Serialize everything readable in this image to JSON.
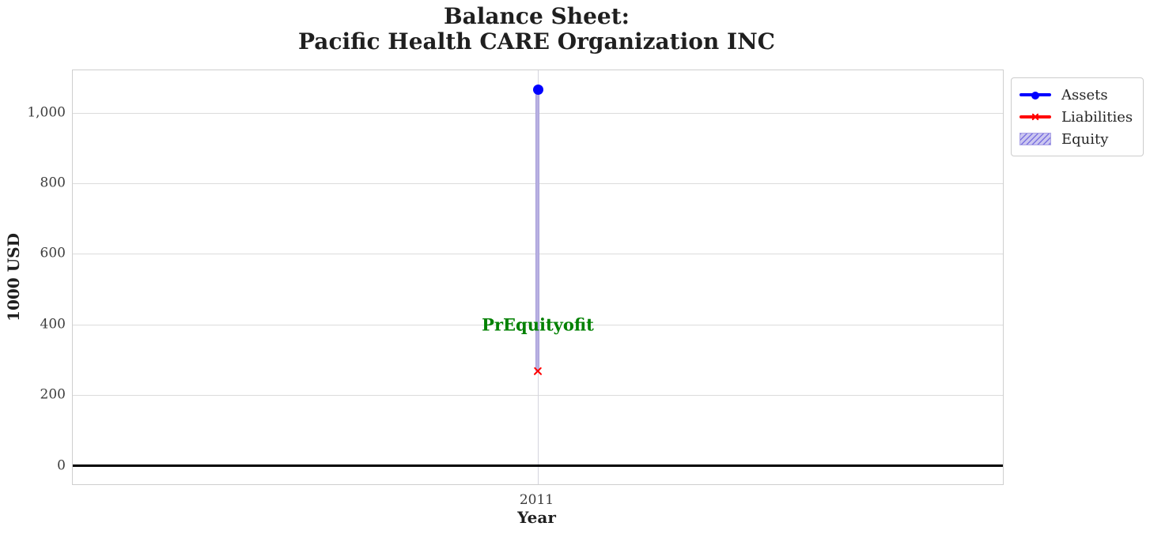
{
  "title": {
    "line1": "Balance Sheet:",
    "line2": "Pacific Health CARE Organization INC"
  },
  "y_axis": {
    "label": "1000 USD",
    "tick_labels": [
      "0",
      "200",
      "400",
      "600",
      "800",
      "1,000"
    ],
    "tick_values": [
      0,
      200,
      400,
      600,
      800,
      1000
    ]
  },
  "x_axis": {
    "label": "Year",
    "tick_labels": [
      "2011"
    ]
  },
  "annotation": {
    "text": "PrEquityofit",
    "color": "#008000",
    "x": 2011,
    "y_value": 400
  },
  "legend": {
    "position": "upper-right-outside",
    "items": [
      {
        "label": "Assets",
        "marker": "circle",
        "style": "line",
        "color": "#0000ff"
      },
      {
        "label": "Liabilities",
        "marker": "x",
        "style": "line",
        "color": "#ff0000"
      },
      {
        "label": "Equity",
        "marker": "hatched-patch",
        "style": "area",
        "color": "#b9b1e2"
      }
    ]
  },
  "colors": {
    "assets": "#0000ff",
    "liabilities": "#ff0000",
    "equity_band": "#b9b1e2",
    "annotation_green": "#008000",
    "grid": "#dcdcdc",
    "zero_line": "#000000"
  },
  "chart_data": {
    "type": "line",
    "title": "Balance Sheet: Pacific Health CARE Organization INC",
    "xlabel": "Year",
    "ylabel": "1000 USD",
    "x": [
      2011
    ],
    "xlim": [
      2010.5,
      2011.5
    ],
    "ylim": [
      -50,
      1120
    ],
    "grid": true,
    "zero_line": true,
    "legend_position": "upper right outside",
    "series": [
      {
        "name": "Assets",
        "values": [
          1065
        ],
        "color": "#0000ff",
        "marker": "circle",
        "line_style": "solid"
      },
      {
        "name": "Liabilities",
        "values": [
          268
        ],
        "color": "#ff0000",
        "marker": "x",
        "line_style": "solid"
      },
      {
        "name": "Equity",
        "values": [
          797
        ],
        "type": "area-between",
        "between": [
          "Liabilities",
          "Assets"
        ],
        "color": "#b9b1e2",
        "hatch": "//"
      }
    ],
    "annotations": [
      {
        "text": "PrEquityofit",
        "x": 2011,
        "y": 400,
        "color": "#008000"
      }
    ]
  }
}
